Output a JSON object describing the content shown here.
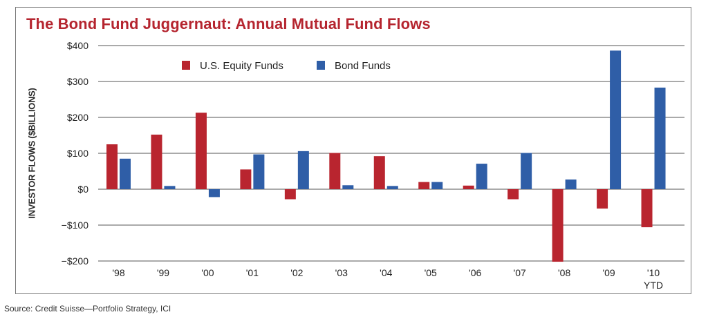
{
  "chart_data": {
    "type": "bar",
    "title": "The Bond Fund Juggernaut: Annual Mutual Fund Flows",
    "ylabel": "INVESTOR FLOWS ($BILLIONS)",
    "xlabel": "",
    "categories": [
      "'98",
      "'99",
      "'00",
      "'01",
      "'02",
      "'03",
      "'04",
      "'05",
      "'06",
      "'07",
      "'08",
      "'09",
      "'10"
    ],
    "category_sublabels": [
      "",
      "",
      "",
      "",
      "",
      "",
      "",
      "",
      "",
      "",
      "",
      "",
      "YTD"
    ],
    "series": [
      {
        "name": "U.S. Equity Funds",
        "color": "#b9252f",
        "values": [
          125,
          152,
          213,
          55,
          -28,
          101,
          92,
          20,
          10,
          -28,
          -202,
          -54,
          -106
        ]
      },
      {
        "name": "Bond Funds",
        "color": "#2f5ea7",
        "values": [
          85,
          9,
          -22,
          97,
          106,
          11,
          9,
          20,
          71,
          101,
          27,
          386,
          283
        ]
      }
    ],
    "ylim": [
      -200,
      400
    ],
    "yticks": [
      400,
      300,
      200,
      100,
      0,
      -100,
      -200
    ],
    "ytick_labels": [
      "$400",
      "$300",
      "$200",
      "$100",
      "$0",
      "−$100",
      "−$200"
    ],
    "grid": true,
    "legend_position": "top-left",
    "source": "Source: Credit Suisse—Portfolio Strategy, ICI"
  }
}
